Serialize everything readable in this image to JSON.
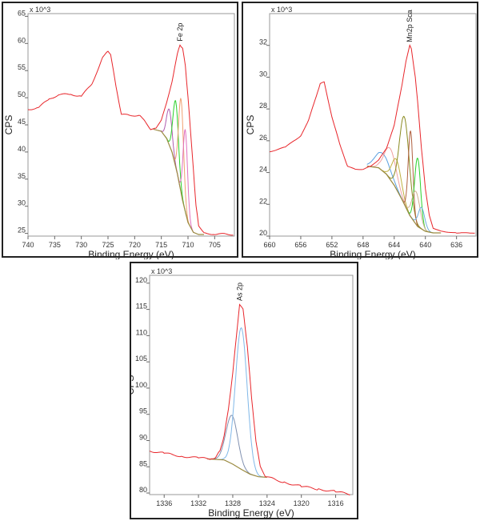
{
  "chart_data": [
    {
      "type": "line",
      "xlabel": "Binding Energy (eV)",
      "ylabel": "CPS",
      "y_multiplier": "x 10^3",
      "peak_label": "Fe 2p",
      "xlim": [
        740,
        701.3
      ],
      "ylim": [
        24.5,
        65.5
      ],
      "xticks": [
        740,
        735,
        730,
        725,
        720,
        715,
        710,
        705
      ],
      "yticks": [
        25,
        30,
        35,
        40,
        45,
        50,
        55,
        60,
        65
      ],
      "data": [
        [
          740,
          47.8
        ],
        [
          738,
          48.2
        ],
        [
          736,
          49.8
        ],
        [
          734,
          50.6
        ],
        [
          732,
          50.6
        ],
        [
          730,
          50.3
        ],
        [
          728,
          52.5
        ],
        [
          726,
          57.5
        ],
        [
          725,
          58.5
        ],
        [
          724.5,
          58
        ],
        [
          723.5,
          52
        ],
        [
          722.5,
          47
        ],
        [
          721,
          46.7
        ],
        [
          719,
          46.8
        ],
        [
          718,
          45.5
        ],
        [
          717,
          44.2
        ],
        [
          716,
          44.3
        ],
        [
          715,
          46
        ],
        [
          714,
          49
        ],
        [
          713,
          53
        ],
        [
          712,
          58
        ],
        [
          711.5,
          59.8
        ],
        [
          711,
          59
        ],
        [
          710.5,
          56
        ],
        [
          710,
          50
        ],
        [
          709,
          37
        ],
        [
          708.5,
          30
        ],
        [
          708,
          26.5
        ],
        [
          707,
          25
        ],
        [
          705,
          24.9
        ],
        [
          701.3,
          24.8
        ]
      ],
      "background": [
        [
          716.5,
          44.2
        ],
        [
          715,
          43.8
        ],
        [
          714,
          42.5
        ],
        [
          713,
          40
        ],
        [
          712,
          36
        ],
        [
          711,
          31
        ],
        [
          710,
          27
        ],
        [
          709,
          25.2
        ],
        [
          708,
          24.8
        ],
        [
          707,
          24.8
        ]
      ],
      "components": [
        {
          "center": 713.5,
          "peak": 47.8,
          "fwhm": 1.2,
          "color": "#b05db0"
        },
        {
          "center": 712.3,
          "peak": 49.3,
          "fwhm": 1.2,
          "color": "#2bd12b"
        },
        {
          "center": 711.3,
          "peak": 49.7,
          "fwhm": 1.1,
          "color": "#f0a070"
        },
        {
          "center": 710.5,
          "peak": 44,
          "fwhm": 1.0,
          "color": "#e070c0"
        }
      ]
    },
    {
      "type": "line",
      "xlabel": "Binding Energy (eV)",
      "ylabel": "CPS",
      "y_multiplier": "x 10^3",
      "peak_label": "Mn2p Sca",
      "xlim": [
        660,
        633.5
      ],
      "ylim": [
        20,
        34
      ],
      "xticks": [
        660,
        656,
        652,
        648,
        644,
        640,
        636
      ],
      "yticks": [
        20,
        22,
        24,
        26,
        28,
        30,
        32
      ],
      "data": [
        [
          660,
          25.3
        ],
        [
          658,
          25.6
        ],
        [
          656,
          26.3
        ],
        [
          655,
          27.3
        ],
        [
          654,
          28.8
        ],
        [
          653.5,
          29.6
        ],
        [
          653,
          29.7
        ],
        [
          652,
          27.5
        ],
        [
          651,
          25.8
        ],
        [
          650,
          24.4
        ],
        [
          649,
          24.2
        ],
        [
          648,
          24.2
        ],
        [
          647,
          24.4
        ],
        [
          646,
          24.8
        ],
        [
          645,
          25.5
        ],
        [
          644,
          27
        ],
        [
          643,
          29.5
        ],
        [
          642.5,
          31
        ],
        [
          642,
          32
        ],
        [
          641.8,
          31.8
        ],
        [
          641.3,
          30
        ],
        [
          641,
          28.5
        ],
        [
          640.5,
          25.5
        ],
        [
          640,
          23
        ],
        [
          639.5,
          21.3
        ],
        [
          639,
          20.5
        ],
        [
          638,
          20.3
        ],
        [
          636,
          20.2
        ],
        [
          633.5,
          20.2
        ]
      ],
      "background": [
        [
          647.5,
          24.4
        ],
        [
          646,
          24.3
        ],
        [
          645,
          23.9
        ],
        [
          644,
          23.2
        ],
        [
          643,
          22.3
        ],
        [
          642,
          21.3
        ],
        [
          641,
          20.6
        ],
        [
          640,
          20.3
        ],
        [
          639,
          20.2
        ],
        [
          638,
          20.2
        ]
      ],
      "components": [
        {
          "center": 645.5,
          "peak": 25.2,
          "fwhm": 2.2,
          "color": "#5aa0e0"
        },
        {
          "center": 644.5,
          "peak": 25.5,
          "fwhm": 1.8,
          "color": "#f0a0a0"
        },
        {
          "center": 643.7,
          "peak": 24.8,
          "fwhm": 1.4,
          "color": "#c0b040"
        },
        {
          "center": 642.7,
          "peak": 27.5,
          "fwhm": 1.5,
          "color": "#8a8a20"
        },
        {
          "center": 641.9,
          "peak": 26.6,
          "fwhm": 0.7,
          "color": "#b06040"
        },
        {
          "center": 641.0,
          "peak": 24.9,
          "fwhm": 0.9,
          "color": "#2bd12b"
        },
        {
          "center": 641.2,
          "peak": 22.8,
          "fwhm": 1.2,
          "color": "#d0b090"
        },
        {
          "center": 640.5,
          "peak": 21.8,
          "fwhm": 1.0,
          "color": "#70b0e0"
        }
      ]
    },
    {
      "type": "line",
      "xlabel": "Binding Energy (eV)",
      "ylabel": "CPS",
      "y_multiplier": "x 10^3",
      "peak_label": "As 2p",
      "xlim": [
        1337.7,
        1314
      ],
      "ylim": [
        79.7,
        121.5
      ],
      "xticks": [
        1336,
        1332,
        1328,
        1324,
        1320,
        1316
      ],
      "yticks": [
        80,
        85,
        90,
        95,
        100,
        105,
        110,
        115,
        120
      ],
      "data": [
        [
          1337.7,
          88
        ],
        [
          1336,
          87.6
        ],
        [
          1334,
          87
        ],
        [
          1332,
          86.7
        ],
        [
          1330.5,
          86.5
        ],
        [
          1330,
          86.8
        ],
        [
          1329.5,
          88
        ],
        [
          1329,
          91
        ],
        [
          1328.5,
          96
        ],
        [
          1328,
          103
        ],
        [
          1327.5,
          111
        ],
        [
          1327.2,
          116
        ],
        [
          1326.8,
          115
        ],
        [
          1326.3,
          108
        ],
        [
          1325.8,
          98
        ],
        [
          1325.3,
          90
        ],
        [
          1324.8,
          85
        ],
        [
          1324.2,
          83.2
        ],
        [
          1322,
          82
        ],
        [
          1320,
          81.3
        ],
        [
          1318,
          80.7
        ],
        [
          1316,
          80.3
        ],
        [
          1314.2,
          79.7
        ]
      ],
      "background": [
        [
          1331,
          86.5
        ],
        [
          1329,
          86.3
        ],
        [
          1328,
          85.5
        ],
        [
          1327,
          84.5
        ],
        [
          1326,
          83.6
        ],
        [
          1325,
          83.1
        ],
        [
          1324,
          83
        ]
      ],
      "components": [
        {
          "center": 1328.1,
          "peak": 94.8,
          "fwhm": 1.6,
          "color": "#8090b0"
        },
        {
          "center": 1327.0,
          "peak": 111.5,
          "fwhm": 1.6,
          "color": "#80b8e8"
        }
      ]
    }
  ],
  "colors": {
    "data": "#e8262b",
    "background": "#9a8a40"
  }
}
